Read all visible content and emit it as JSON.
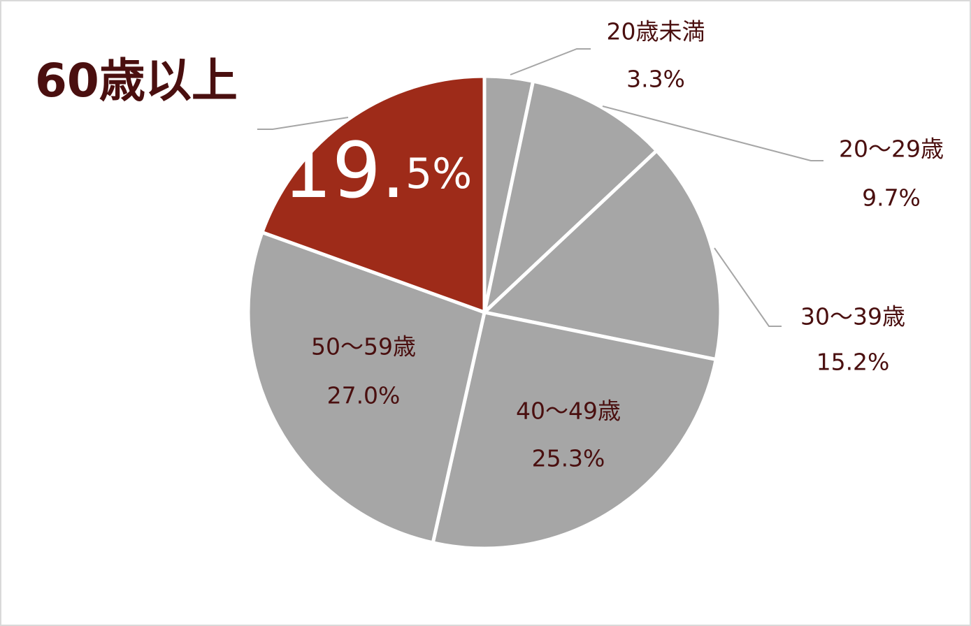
{
  "chart_data": {
    "type": "pie",
    "categories": [
      "20歳未満",
      "20～29歳",
      "30～39歳",
      "40～49歳",
      "50～59歳",
      "60歳以上"
    ],
    "values": [
      3.3,
      9.7,
      15.2,
      25.3,
      27.0,
      19.5
    ],
    "value_labels": [
      "3.3%",
      "9.7%",
      "15.2%",
      "25.3%",
      "27.0%",
      "19.5%"
    ],
    "colors": [
      "#a6a6a6",
      "#a6a6a6",
      "#a6a6a6",
      "#a6a6a6",
      "#a6a6a6",
      "#9e2b19"
    ]
  }
}
